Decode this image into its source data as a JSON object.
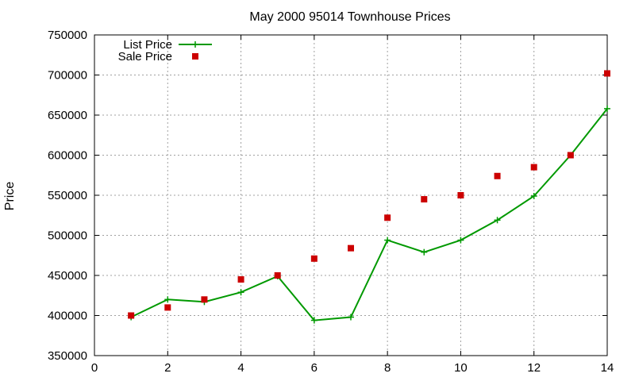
{
  "chart_data": {
    "type": "line",
    "title": "May 2000 95014 Townhouse Prices",
    "xlabel": "",
    "ylabel": "Price",
    "xlim": [
      0,
      14
    ],
    "ylim": [
      350000,
      750000
    ],
    "x_ticks": [
      0,
      2,
      4,
      6,
      8,
      10,
      12,
      14
    ],
    "y_ticks": [
      350000,
      400000,
      450000,
      500000,
      550000,
      600000,
      650000,
      700000,
      750000
    ],
    "grid": true,
    "legend_position": "top-left",
    "series": [
      {
        "name": "List Price",
        "style": "line-with-plus-markers",
        "color": "#009900",
        "x": [
          1,
          2,
          3,
          4,
          5,
          6,
          7,
          8,
          9,
          10,
          11,
          12,
          13,
          14
        ],
        "y": [
          398000,
          420000,
          417000,
          429000,
          449000,
          394000,
          398000,
          494000,
          479000,
          494000,
          519000,
          549000,
          600000,
          658000
        ]
      },
      {
        "name": "Sale Price",
        "style": "square-markers",
        "color": "#cc0000",
        "x": [
          1,
          2,
          3,
          4,
          5,
          6,
          7,
          8,
          9,
          10,
          11,
          12,
          13,
          14
        ],
        "y": [
          400000,
          410000,
          420000,
          445000,
          450000,
          471000,
          484000,
          522000,
          545000,
          550000,
          574000,
          585000,
          600000,
          702000
        ]
      }
    ]
  }
}
